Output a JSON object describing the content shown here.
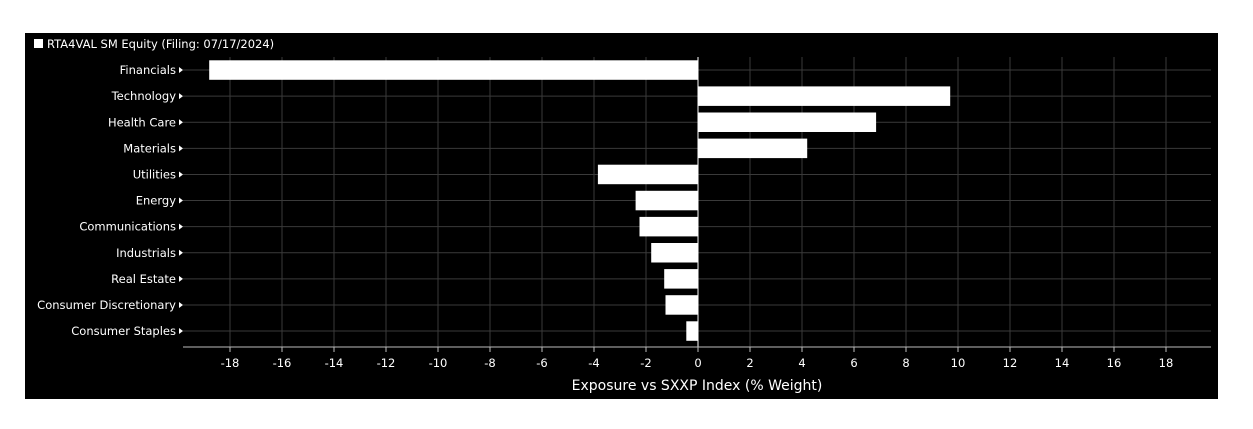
{
  "chart_data": {
    "type": "bar",
    "orientation": "horizontal",
    "categories": [
      "Financials",
      "Technology",
      "Health Care",
      "Materials",
      "Utilities",
      "Energy",
      "Communications",
      "Industrials",
      "Real Estate",
      "Consumer Discretionary",
      "Consumer Staples"
    ],
    "series": [
      {
        "name": "RTA4VAL SM Equity (Filing: 07/17/2024)",
        "values": [
          -18.8,
          9.7,
          6.85,
          4.2,
          -3.85,
          -2.4,
          -2.25,
          -1.8,
          -1.3,
          -1.25,
          -0.45
        ]
      }
    ],
    "xlabel": "Exposure vs SXXP Index (% Weight)",
    "ylabel": "",
    "xlim": [
      -19.5,
      19.5
    ],
    "xticks": [
      -18,
      -16,
      -14,
      -12,
      -10,
      -8,
      -6,
      -4,
      -2,
      0,
      2,
      4,
      6,
      8,
      10,
      12,
      14,
      16,
      18
    ],
    "grid": true,
    "legend_position": "top-left",
    "colors": {
      "background": "#000000",
      "bar": "#ffffff",
      "grid": "#3a3a3a",
      "text": "#ffffff"
    }
  }
}
